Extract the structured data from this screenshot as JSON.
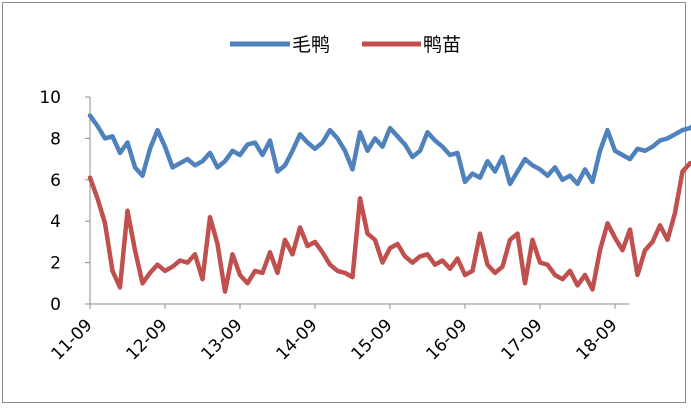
{
  "chart_data": {
    "type": "line",
    "title": "",
    "xlabel": "",
    "ylabel": "",
    "ylim": [
      0,
      10
    ],
    "yticks": [
      "0",
      "2",
      "4",
      "6",
      "8",
      "10"
    ],
    "xticks": [
      "11-09",
      "12-09",
      "13-09",
      "14-09",
      "15-09",
      "16-09",
      "17-09",
      "18-09"
    ],
    "legend_position": "top-center",
    "grid": false,
    "series": [
      {
        "name": "毛鸭",
        "color": "#4f81bd",
        "points": [
          [
            0.0,
            9.1
          ],
          [
            0.1,
            8.6
          ],
          [
            0.2,
            8.0
          ],
          [
            0.3,
            8.1
          ],
          [
            0.4,
            7.3
          ],
          [
            0.5,
            7.8
          ],
          [
            0.6,
            6.6
          ],
          [
            0.7,
            6.2
          ],
          [
            0.8,
            7.5
          ],
          [
            0.9,
            8.4
          ],
          [
            1.0,
            7.6
          ],
          [
            1.1,
            6.6
          ],
          [
            1.2,
            6.8
          ],
          [
            1.3,
            7.0
          ],
          [
            1.4,
            6.7
          ],
          [
            1.5,
            6.9
          ],
          [
            1.6,
            7.3
          ],
          [
            1.7,
            6.6
          ],
          [
            1.8,
            6.9
          ],
          [
            1.9,
            7.4
          ],
          [
            2.0,
            7.2
          ],
          [
            2.1,
            7.7
          ],
          [
            2.2,
            7.8
          ],
          [
            2.3,
            7.2
          ],
          [
            2.4,
            7.9
          ],
          [
            2.5,
            6.4
          ],
          [
            2.6,
            6.7
          ],
          [
            2.7,
            7.4
          ],
          [
            2.8,
            8.2
          ],
          [
            2.9,
            7.8
          ],
          [
            3.0,
            7.5
          ],
          [
            3.1,
            7.8
          ],
          [
            3.2,
            8.4
          ],
          [
            3.3,
            8.0
          ],
          [
            3.4,
            7.4
          ],
          [
            3.5,
            6.5
          ],
          [
            3.6,
            8.3
          ],
          [
            3.7,
            7.4
          ],
          [
            3.8,
            8.0
          ],
          [
            3.9,
            7.6
          ],
          [
            4.0,
            8.5
          ],
          [
            4.1,
            8.1
          ],
          [
            4.2,
            7.7
          ],
          [
            4.3,
            7.1
          ],
          [
            4.4,
            7.4
          ],
          [
            4.5,
            8.3
          ],
          [
            4.6,
            7.9
          ],
          [
            4.7,
            7.6
          ],
          [
            4.8,
            7.2
          ],
          [
            4.9,
            7.3
          ],
          [
            5.0,
            5.9
          ],
          [
            5.1,
            6.3
          ],
          [
            5.2,
            6.1
          ],
          [
            5.3,
            6.9
          ],
          [
            5.4,
            6.4
          ],
          [
            5.5,
            7.1
          ],
          [
            5.6,
            5.8
          ],
          [
            5.7,
            6.4
          ],
          [
            5.8,
            7.0
          ],
          [
            5.9,
            6.7
          ],
          [
            6.0,
            6.5
          ],
          [
            6.1,
            6.2
          ],
          [
            6.2,
            6.6
          ],
          [
            6.3,
            6.0
          ],
          [
            6.4,
            6.2
          ],
          [
            6.5,
            5.8
          ],
          [
            6.6,
            6.5
          ],
          [
            6.7,
            5.9
          ],
          [
            6.8,
            7.4
          ],
          [
            6.9,
            8.4
          ],
          [
            7.0,
            7.4
          ],
          [
            7.1,
            7.2
          ],
          [
            7.2,
            7.0
          ],
          [
            7.3,
            7.5
          ],
          [
            7.4,
            7.4
          ],
          [
            7.5,
            7.6
          ],
          [
            7.6,
            7.9
          ],
          [
            7.7,
            8.0
          ],
          [
            7.8,
            8.2
          ],
          [
            7.9,
            8.4
          ],
          [
            8.0,
            8.5
          ],
          [
            8.1,
            8.8
          ],
          [
            8.2,
            9.0
          ]
        ]
      },
      {
        "name": "鸭苗",
        "color": "#c0504d",
        "points": [
          [
            0.0,
            6.1
          ],
          [
            0.1,
            5.1
          ],
          [
            0.2,
            3.9
          ],
          [
            0.3,
            1.6
          ],
          [
            0.4,
            0.8
          ],
          [
            0.5,
            4.5
          ],
          [
            0.6,
            2.6
          ],
          [
            0.7,
            1.0
          ],
          [
            0.8,
            1.5
          ],
          [
            0.9,
            1.9
          ],
          [
            1.0,
            1.6
          ],
          [
            1.1,
            1.8
          ],
          [
            1.2,
            2.1
          ],
          [
            1.3,
            2.0
          ],
          [
            1.4,
            2.4
          ],
          [
            1.5,
            1.2
          ],
          [
            1.6,
            4.2
          ],
          [
            1.7,
            2.9
          ],
          [
            1.8,
            0.6
          ],
          [
            1.9,
            2.4
          ],
          [
            2.0,
            1.4
          ],
          [
            2.1,
            1.0
          ],
          [
            2.2,
            1.6
          ],
          [
            2.3,
            1.5
          ],
          [
            2.4,
            2.5
          ],
          [
            2.5,
            1.5
          ],
          [
            2.6,
            3.1
          ],
          [
            2.7,
            2.4
          ],
          [
            2.8,
            3.7
          ],
          [
            2.9,
            2.8
          ],
          [
            3.0,
            3.0
          ],
          [
            3.1,
            2.5
          ],
          [
            3.2,
            1.9
          ],
          [
            3.3,
            1.6
          ],
          [
            3.4,
            1.5
          ],
          [
            3.5,
            1.3
          ],
          [
            3.6,
            5.1
          ],
          [
            3.7,
            3.4
          ],
          [
            3.8,
            3.1
          ],
          [
            3.9,
            2.0
          ],
          [
            4.0,
            2.7
          ],
          [
            4.1,
            2.9
          ],
          [
            4.2,
            2.3
          ],
          [
            4.3,
            2.0
          ],
          [
            4.4,
            2.3
          ],
          [
            4.5,
            2.4
          ],
          [
            4.6,
            1.9
          ],
          [
            4.7,
            2.1
          ],
          [
            4.8,
            1.7
          ],
          [
            4.9,
            2.2
          ],
          [
            5.0,
            1.4
          ],
          [
            5.1,
            1.6
          ],
          [
            5.2,
            3.4
          ],
          [
            5.3,
            1.9
          ],
          [
            5.4,
            1.5
          ],
          [
            5.5,
            1.8
          ],
          [
            5.6,
            3.1
          ],
          [
            5.7,
            3.4
          ],
          [
            5.8,
            1.0
          ],
          [
            5.9,
            3.1
          ],
          [
            6.0,
            2.0
          ],
          [
            6.1,
            1.9
          ],
          [
            6.2,
            1.4
          ],
          [
            6.3,
            1.2
          ],
          [
            6.4,
            1.6
          ],
          [
            6.5,
            0.9
          ],
          [
            6.6,
            1.4
          ],
          [
            6.7,
            0.7
          ],
          [
            6.8,
            2.6
          ],
          [
            6.9,
            3.9
          ],
          [
            7.0,
            3.2
          ],
          [
            7.1,
            2.6
          ],
          [
            7.2,
            3.6
          ],
          [
            7.3,
            1.4
          ],
          [
            7.4,
            2.6
          ],
          [
            7.5,
            3.0
          ],
          [
            7.6,
            3.8
          ],
          [
            7.7,
            3.1
          ],
          [
            7.8,
            4.4
          ],
          [
            7.9,
            6.4
          ],
          [
            8.0,
            6.8
          ],
          [
            8.1,
            6.6
          ],
          [
            8.2,
            5.8
          ]
        ]
      }
    ]
  }
}
